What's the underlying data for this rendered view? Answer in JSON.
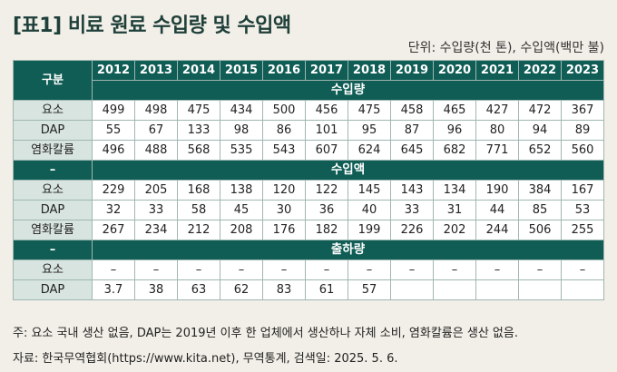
{
  "title": "[표1] 비료 원료 수입량 및 수입액",
  "unit": "단위: 수입량(천 톤), 수입액(백만 불)",
  "table": {
    "corner": "구분",
    "years": [
      "2012",
      "2013",
      "2014",
      "2015",
      "2016",
      "2017",
      "2018",
      "2019",
      "2020",
      "2021",
      "2022",
      "2023"
    ],
    "sections": [
      {
        "label": "",
        "title": "수입량",
        "rows": [
          {
            "name": "요소",
            "values": [
              "499",
              "498",
              "475",
              "434",
              "500",
              "456",
              "475",
              "458",
              "465",
              "427",
              "472",
              "367"
            ]
          },
          {
            "name": "DAP",
            "values": [
              "55",
              "67",
              "133",
              "98",
              "86",
              "101",
              "95",
              "87",
              "96",
              "80",
              "94",
              "89"
            ]
          },
          {
            "name": "염화칼륨",
            "values": [
              "496",
              "488",
              "568",
              "535",
              "543",
              "607",
              "624",
              "645",
              "682",
              "771",
              "652",
              "560"
            ]
          }
        ]
      },
      {
        "label": "–",
        "title": "수입액",
        "rows": [
          {
            "name": "요소",
            "values": [
              "229",
              "205",
              "168",
              "138",
              "120",
              "122",
              "145",
              "143",
              "134",
              "190",
              "384",
              "167"
            ]
          },
          {
            "name": "DAP",
            "values": [
              "32",
              "33",
              "58",
              "45",
              "30",
              "36",
              "40",
              "33",
              "31",
              "44",
              "85",
              "53"
            ]
          },
          {
            "name": "염화칼륨",
            "values": [
              "267",
              "234",
              "212",
              "208",
              "176",
              "182",
              "199",
              "226",
              "202",
              "244",
              "506",
              "255"
            ]
          }
        ]
      },
      {
        "label": "–",
        "title": "출하량",
        "rows": [
          {
            "name": "요소",
            "values": [
              "–",
              "–",
              "–",
              "–",
              "–",
              "–",
              "–",
              "–",
              "–",
              "–",
              "–",
              "–"
            ]
          },
          {
            "name": "DAP",
            "values": [
              "3.7",
              "38",
              "63",
              "62",
              "83",
              "61",
              "57",
              "",
              "",
              "",
              "",
              ""
            ]
          }
        ]
      }
    ]
  },
  "note": "주: 요소 국내 생산 없음, DAP는 2019년 이후 한 업체에서 생산하나 자체 소비, 염화칼륨은 생산 없음.",
  "source": "자료: 한국무역협회(https://www.kita.net), 무역통계, 검색일: 2025. 5. 6."
}
